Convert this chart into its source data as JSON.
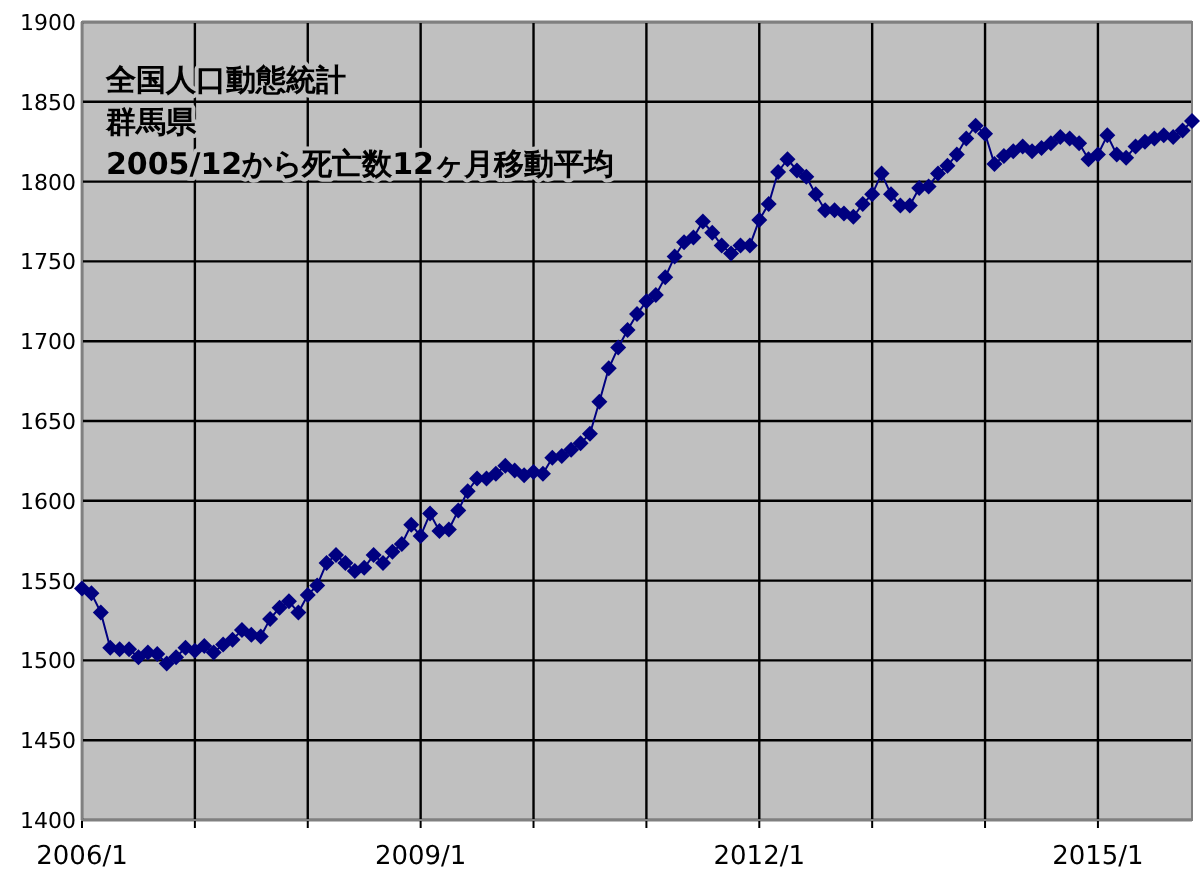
{
  "chart_data": {
    "type": "line",
    "annotations": [
      "全国人口動態統計",
      "群馬県",
      "2005/12から死亡数12ヶ月移動平均"
    ],
    "x": [
      "2006-01",
      "2006-02",
      "2006-03",
      "2006-04",
      "2006-05",
      "2006-06",
      "2006-07",
      "2006-08",
      "2006-09",
      "2006-10",
      "2006-11",
      "2006-12",
      "2007-01",
      "2007-02",
      "2007-03",
      "2007-04",
      "2007-05",
      "2007-06",
      "2007-07",
      "2007-08",
      "2007-09",
      "2007-10",
      "2007-11",
      "2007-12",
      "2008-01",
      "2008-02",
      "2008-03",
      "2008-04",
      "2008-05",
      "2008-06",
      "2008-07",
      "2008-08",
      "2008-09",
      "2008-10",
      "2008-11",
      "2008-12",
      "2009-01",
      "2009-02",
      "2009-03",
      "2009-04",
      "2009-05",
      "2009-06",
      "2009-07",
      "2009-08",
      "2009-09",
      "2009-10",
      "2009-11",
      "2009-12",
      "2010-01",
      "2010-02",
      "2010-03",
      "2010-04",
      "2010-05",
      "2010-06",
      "2010-07",
      "2010-08",
      "2010-09",
      "2010-10",
      "2010-11",
      "2010-12",
      "2011-01",
      "2011-02",
      "2011-03",
      "2011-04",
      "2011-05",
      "2011-06",
      "2011-07",
      "2011-08",
      "2011-09",
      "2011-10",
      "2011-11",
      "2011-12",
      "2012-01",
      "2012-02",
      "2012-03",
      "2012-04",
      "2012-05",
      "2012-06",
      "2012-07",
      "2012-08",
      "2012-09",
      "2012-10",
      "2012-11",
      "2012-12",
      "2013-01",
      "2013-02",
      "2013-03",
      "2013-04",
      "2013-05",
      "2013-06",
      "2013-07",
      "2013-08",
      "2013-09",
      "2013-10",
      "2013-11",
      "2013-12",
      "2014-01",
      "2014-02",
      "2014-03",
      "2014-04",
      "2014-05",
      "2014-06",
      "2014-07",
      "2014-08",
      "2014-09",
      "2014-10",
      "2014-11",
      "2014-12",
      "2015-01",
      "2015-02",
      "2015-03",
      "2015-04",
      "2015-05",
      "2015-06",
      "2015-07",
      "2015-08",
      "2015-09",
      "2015-10",
      "2015-11"
    ],
    "series": [
      {
        "color": "#000080",
        "values": [
          1545,
          1542,
          1530,
          1508,
          1507,
          1507,
          1502,
          1505,
          1504,
          1498,
          1502,
          1508,
          1506,
          1509,
          1505,
          1510,
          1513,
          1519,
          1516,
          1515,
          1526,
          1533,
          1537,
          1530,
          1541,
          1547,
          1561,
          1566,
          1561,
          1556,
          1558,
          1566,
          1561,
          1568,
          1573,
          1585,
          1578,
          1592,
          1581,
          1582,
          1594,
          1606,
          1614,
          1614,
          1617,
          1622,
          1619,
          1616,
          1618,
          1617,
          1627,
          1628,
          1632,
          1636,
          1642,
          1662,
          1683,
          1696,
          1707,
          1717,
          1725,
          1729,
          1740,
          1753,
          1762,
          1765,
          1775,
          1768,
          1760,
          1755,
          1760,
          1760,
          1776,
          1786,
          1806,
          1814,
          1807,
          1803,
          1792,
          1782,
          1782,
          1780,
          1778,
          1786,
          1792,
          1805,
          1792,
          1785,
          1785,
          1796,
          1797,
          1805,
          1810,
          1817,
          1827,
          1835,
          1830,
          1811,
          1816,
          1819,
          1822,
          1819,
          1821,
          1824,
          1828,
          1827,
          1824,
          1814,
          1817,
          1829,
          1817,
          1815,
          1822,
          1825,
          1827,
          1829,
          1828,
          1832,
          1838
        ]
      }
    ],
    "xlim": [
      "2006-01",
      "2015-11"
    ],
    "xticks": [
      {
        "value": "2006-01",
        "label": "2006/1"
      },
      {
        "value": "2007-01",
        "label": null
      },
      {
        "value": "2008-01",
        "label": null
      },
      {
        "value": "2009-01",
        "label": "2009/1"
      },
      {
        "value": "2010-01",
        "label": null
      },
      {
        "value": "2011-01",
        "label": null
      },
      {
        "value": "2012-01",
        "label": "2012/1"
      },
      {
        "value": "2013-01",
        "label": null
      },
      {
        "value": "2014-01",
        "label": null
      },
      {
        "value": "2015-01",
        "label": "2015/1"
      }
    ],
    "ylim": [
      1400,
      1900
    ],
    "yticks": [
      1400,
      1450,
      1500,
      1550,
      1600,
      1650,
      1700,
      1750,
      1800,
      1850,
      1900
    ],
    "grid": true,
    "marker": "diamond",
    "line_style": "solid"
  }
}
